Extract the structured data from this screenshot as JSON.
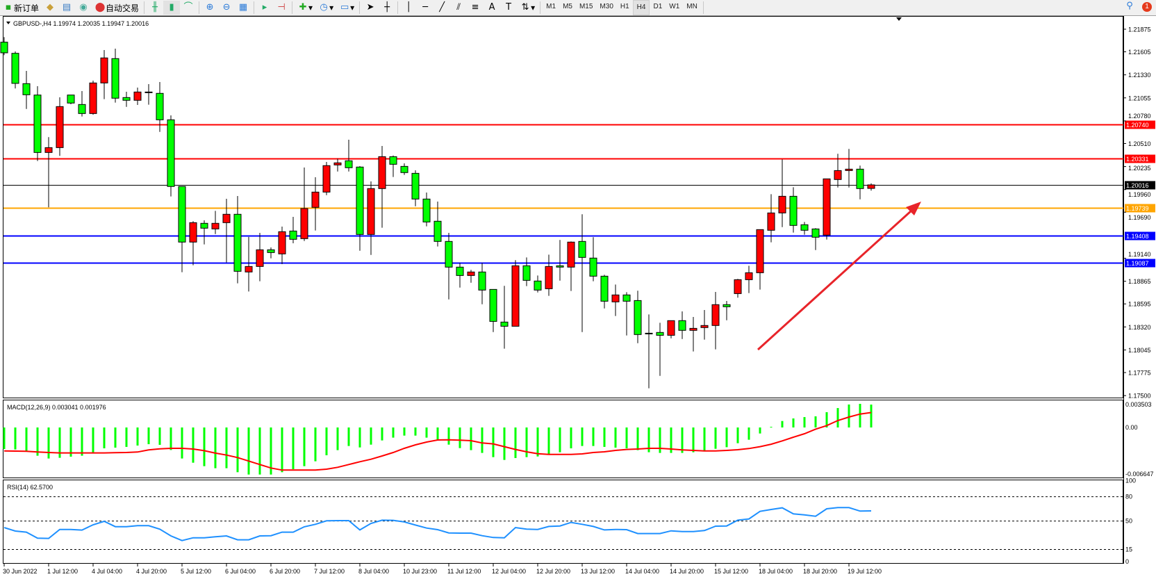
{
  "toolbar": {
    "new_order": "新订单",
    "auto_trading": "自动交易",
    "timeframes": [
      "M1",
      "M5",
      "M15",
      "M30",
      "H1",
      "H4",
      "D1",
      "W1",
      "MN"
    ],
    "active_timeframe": "H4",
    "notification_count": "1",
    "icons": [
      "new-order-icon",
      "history-icon",
      "market-watch-icon",
      "signals-icon",
      "auto-trading-icon",
      "bar-chart-icon",
      "candlestick-icon",
      "line-chart-icon",
      "zoom-in-icon",
      "zoom-out-icon",
      "tile-windows-icon",
      "autoscroll-icon",
      "chart-shift-icon",
      "indicators-icon",
      "periods-icon",
      "templates-icon",
      "cursor-icon",
      "crosshair-icon",
      "vertical-line-icon",
      "horizontal-line-icon",
      "trendline-icon",
      "equidistant-channel-icon",
      "fibonacci-icon",
      "text-icon",
      "text-label-icon",
      "arrows-icon",
      "search-icon",
      "notification-icon"
    ]
  },
  "chart": {
    "header": "GBPUSD-,H4  1.19974 1.20035 1.19947 1.20016",
    "colors": {
      "bull": "#ff0000",
      "bear": "#00ff00",
      "macd_hist": "#00ff00",
      "signal": "#ff0000",
      "rsi": "#1e90ff"
    }
  },
  "chart_data": [
    {
      "type": "candlestick",
      "symbol": "GBPUSD-",
      "timeframe": "H4",
      "ylim": [
        1.175,
        1.2195
      ],
      "y_ticks": [
        "1.21875",
        "1.21605",
        "1.21330",
        "1.21055",
        "1.20780",
        "1.20510",
        "1.20235",
        "1.19960",
        "1.19690",
        "1.19140",
        "1.18865",
        "1.18595",
        "1.18320",
        "1.18045",
        "1.17775",
        "1.17500"
      ],
      "x_ticks": [
        "30 Jun 2022",
        "1 Jul 12:00",
        "4 Jul 04:00",
        "4 Jul 20:00",
        "5 Jul 12:00",
        "6 Jul 04:00",
        "6 Jul 20:00",
        "7 Jul 12:00",
        "8 Jul 04:00",
        "10 Jul 23:00",
        "11 Jul 12:00",
        "12 Jul 04:00",
        "12 Jul 20:00",
        "13 Jul 12:00",
        "14 Jul 04:00",
        "14 Jul 20:00",
        "15 Jul 12:00",
        "18 Jul 04:00",
        "18 Jul 20:00",
        "19 Jul 12:00"
      ],
      "ohlc": [
        [
          1.2172,
          1.21781,
          1.21565,
          1.21593
        ],
        [
          1.21587,
          1.21609,
          1.21167,
          1.21228
        ],
        [
          1.21225,
          1.21377,
          1.20923,
          1.21092
        ],
        [
          1.21089,
          1.21194,
          1.20301,
          1.20403
        ],
        [
          1.20403,
          1.20586,
          1.19748,
          1.20461
        ],
        [
          1.20461,
          1.21062,
          1.20362,
          1.20951
        ],
        [
          1.21089,
          1.2109,
          1.20979,
          1.20993
        ],
        [
          1.20976,
          1.21136,
          1.20832,
          1.20868
        ],
        [
          1.20868,
          1.21261,
          1.20854,
          1.21233
        ],
        [
          1.21233,
          1.21626,
          1.2104,
          1.21532
        ],
        [
          1.21524,
          1.21643,
          1.20998,
          1.21051
        ],
        [
          1.21059,
          1.21128,
          1.20948,
          1.21026
        ],
        [
          1.21026,
          1.21178,
          1.2097,
          1.21125
        ],
        [
          1.21117,
          1.21219,
          1.20973,
          1.21125
        ],
        [
          1.21109,
          1.21244,
          1.20649,
          1.20793
        ],
        [
          1.20793,
          1.20846,
          1.19878,
          1.19997
        ],
        [
          1.19997,
          1.19998,
          1.18973,
          1.19333
        ],
        [
          1.19333,
          1.19582,
          1.19056,
          1.19565
        ],
        [
          1.19557,
          1.19593,
          1.19305,
          1.19499
        ],
        [
          1.1949,
          1.19706,
          1.19429,
          1.19557
        ],
        [
          1.19565,
          1.1985,
          1.19089,
          1.19665
        ],
        [
          1.19665,
          1.19883,
          1.1884,
          1.18984
        ],
        [
          1.18976,
          1.19394,
          1.18743,
          1.19042
        ],
        [
          1.19042,
          1.19443,
          1.18865,
          1.19241
        ],
        [
          1.19241,
          1.19269,
          1.19139,
          1.19208
        ],
        [
          1.19192,
          1.19518,
          1.1907,
          1.19457
        ],
        [
          1.19465,
          1.19634,
          1.19319,
          1.19366
        ],
        [
          1.19374,
          1.20223,
          1.19346,
          1.19734
        ],
        [
          1.19748,
          1.20107,
          1.19471,
          1.1993
        ],
        [
          1.1993,
          1.2029,
          1.19894,
          1.20246
        ],
        [
          1.20254,
          1.20329,
          1.20176,
          1.20279
        ],
        [
          1.20304,
          1.20555,
          1.20176,
          1.20221
        ],
        [
          1.20229,
          1.2024,
          1.1923,
          1.19424
        ],
        [
          1.19424,
          1.20057,
          1.1918,
          1.19972
        ],
        [
          1.19972,
          1.20481,
          1.19504,
          1.20353
        ],
        [
          1.20353,
          1.20367,
          1.2011,
          1.20262
        ],
        [
          1.20237,
          1.20273,
          1.20135,
          1.20163
        ],
        [
          1.20154,
          1.2019,
          1.19761,
          1.19847
        ],
        [
          1.19847,
          1.19925,
          1.19521,
          1.19573
        ],
        [
          1.19582,
          1.19817,
          1.1928,
          1.19341
        ],
        [
          1.19341,
          1.19443,
          1.18649,
          1.19034
        ],
        [
          1.19034,
          1.19084,
          1.1879,
          1.18934
        ],
        [
          1.18934,
          1.19001,
          1.18848,
          1.18976
        ],
        [
          1.18976,
          1.19084,
          1.18591,
          1.1876
        ],
        [
          1.18768,
          1.18769,
          1.18259,
          1.18386
        ],
        [
          1.18378,
          1.1881,
          1.1806,
          1.18328
        ],
        [
          1.18328,
          1.19117,
          1.18328,
          1.1905
        ],
        [
          1.1905,
          1.1915,
          1.18807,
          1.18876
        ],
        [
          1.18868,
          1.18934,
          1.18732,
          1.1876
        ],
        [
          1.18776,
          1.19183,
          1.18691,
          1.19042
        ],
        [
          1.1905,
          1.19358,
          1.18873,
          1.19034
        ],
        [
          1.19034,
          1.19341,
          1.18749,
          1.19333
        ],
        [
          1.19341,
          1.19665,
          1.18259,
          1.1915
        ],
        [
          1.19142,
          1.19391,
          1.18865,
          1.18926
        ],
        [
          1.18926,
          1.18942,
          1.18541,
          1.18627
        ],
        [
          1.18619,
          1.18826,
          1.1845,
          1.18702
        ],
        [
          1.18702,
          1.18735,
          1.18218,
          1.18627
        ],
        [
          1.18635,
          1.18752,
          1.18126,
          1.18229
        ],
        [
          1.18245,
          1.18469,
          1.17587,
          1.18237
        ],
        [
          1.18254,
          1.1837,
          1.17736,
          1.1822
        ],
        [
          1.1822,
          1.18395,
          1.18184,
          1.18395
        ],
        [
          1.18395,
          1.18505,
          1.18176,
          1.18279
        ],
        [
          1.18279,
          1.18439,
          1.18027,
          1.18303
        ],
        [
          1.18312,
          1.18522,
          1.18168,
          1.18337
        ],
        [
          1.18337,
          1.18738,
          1.18052,
          1.18586
        ],
        [
          1.18586,
          1.1863,
          1.184,
          1.18561
        ],
        [
          1.18718,
          1.18893,
          1.18669,
          1.18884
        ],
        [
          1.18884,
          1.1905,
          1.18724,
          1.18967
        ],
        [
          1.18967,
          1.19482,
          1.18766,
          1.19482
        ],
        [
          1.19474,
          1.19905,
          1.1933,
          1.19681
        ],
        [
          1.19681,
          1.2032,
          1.19512,
          1.1988
        ],
        [
          1.1988,
          1.19988,
          1.19446,
          1.19532
        ],
        [
          1.1954,
          1.19573,
          1.19421,
          1.19474
        ],
        [
          1.1949,
          1.19499,
          1.19238,
          1.19391
        ],
        [
          1.19416,
          1.20088,
          1.19363,
          1.20088
        ],
        [
          1.2008,
          1.20387,
          1.19985,
          1.20187
        ],
        [
          1.20187,
          1.20445,
          1.19985,
          1.20204
        ],
        [
          1.20204,
          1.20246,
          1.19844,
          1.19972
        ],
        [
          1.19974,
          1.20035,
          1.19947,
          1.20016
        ]
      ],
      "levels": [
        {
          "price": "1.20740",
          "color": "#ff0000"
        },
        {
          "price": "1.20331",
          "color": "#ff0000"
        },
        {
          "price": "1.20016",
          "color": "#000000"
        },
        {
          "price": "1.19739",
          "color": "#ffa500"
        },
        {
          "price": "1.19408",
          "color": "#0000ff"
        },
        {
          "price": "1.19087",
          "color": "#0000ff"
        }
      ],
      "annotation": "red up-trend arrow"
    },
    {
      "type": "bar+line",
      "title": "MACD(12,26,9) 0.003041 0.001976",
      "ylim": [
        -0.006647,
        0.003503
      ],
      "y_ticks": [
        "0.003503",
        "0.00",
        "-0.006647"
      ],
      "histogram": [
        -0.00286,
        -0.00292,
        -0.00317,
        -0.00375,
        -0.00412,
        -0.00403,
        -0.00388,
        -0.00375,
        -0.00342,
        -0.00277,
        -0.00268,
        -0.00258,
        -0.0024,
        -0.00222,
        -0.00231,
        -0.00299,
        -0.00412,
        -0.00468,
        -0.00514,
        -0.00541,
        -0.00541,
        -0.00594,
        -0.00625,
        -0.00625,
        -0.00625,
        -0.00594,
        -0.00554,
        -0.00514,
        -0.00449,
        -0.00369,
        -0.00301,
        -0.00246,
        -0.00265,
        -0.00228,
        -0.00172,
        -0.00135,
        -0.00108,
        -0.00108,
        -0.00135,
        -0.00169,
        -0.00228,
        -0.00274,
        -0.00301,
        -0.00338,
        -0.00394,
        -0.00431,
        -0.00406,
        -0.00394,
        -0.00385,
        -0.00351,
        -0.00329,
        -0.00277,
        -0.00246,
        -0.00246,
        -0.00258,
        -0.00268,
        -0.00277,
        -0.00301,
        -0.00329,
        -0.00338,
        -0.00338,
        -0.00338,
        -0.00329,
        -0.00314,
        -0.00283,
        -0.00262,
        -0.00209,
        -0.00163,
        -0.0008,
        9e-05,
        0.00086,
        0.0012,
        0.00138,
        0.00148,
        0.00203,
        0.00258,
        0.00305,
        0.00314,
        0.00304
      ],
      "signal": [
        -0.00311,
        -0.00314,
        -0.00317,
        -0.00326,
        -0.00332,
        -0.00338,
        -0.00338,
        -0.00338,
        -0.00338,
        -0.00338,
        -0.00335,
        -0.00332,
        -0.00326,
        -0.00298,
        -0.00283,
        -0.00277,
        -0.00277,
        -0.00286,
        -0.00308,
        -0.00341,
        -0.00366,
        -0.004,
        -0.00446,
        -0.00492,
        -0.00538,
        -0.00566,
        -0.00566,
        -0.00566,
        -0.00566,
        -0.00554,
        -0.00529,
        -0.00492,
        -0.00455,
        -0.00422,
        -0.00378,
        -0.00332,
        -0.00277,
        -0.00231,
        -0.00194,
        -0.00166,
        -0.00163,
        -0.00169,
        -0.00175,
        -0.00206,
        -0.00218,
        -0.00255,
        -0.00292,
        -0.00323,
        -0.00348,
        -0.00357,
        -0.00357,
        -0.00357,
        -0.00351,
        -0.00332,
        -0.00323,
        -0.00305,
        -0.00292,
        -0.00286,
        -0.00277,
        -0.00277,
        -0.00286,
        -0.00298,
        -0.00305,
        -0.00311,
        -0.00311,
        -0.00305,
        -0.00295,
        -0.0028,
        -0.00255,
        -0.00222,
        -0.00178,
        -0.00129,
        -0.00083,
        -0.00022,
        0.00025,
        0.00092,
        0.00138,
        0.00178,
        0.00198
      ]
    },
    {
      "type": "line",
      "title": "RSI(14) 62.5700",
      "ylim": [
        0,
        100
      ],
      "y_ticks": [
        "100",
        "80",
        "50",
        "15",
        "0"
      ],
      "levels": [
        80,
        50,
        15
      ],
      "values": [
        42.0,
        37.7,
        36.3,
        28.9,
        28.6,
        39.7,
        39.7,
        38.9,
        45.4,
        49.7,
        43.1,
        43.1,
        44.3,
        44.3,
        40.0,
        31.7,
        26.0,
        29.4,
        29.4,
        30.6,
        31.7,
        26.9,
        26.9,
        31.7,
        32.0,
        36.3,
        36.3,
        42.9,
        46.0,
        50.3,
        50.6,
        50.6,
        39.1,
        47.1,
        51.1,
        50.9,
        48.9,
        45.1,
        41.4,
        39.4,
        35.4,
        35.1,
        35.1,
        32.0,
        29.7,
        29.4,
        42.0,
        40.0,
        39.7,
        43.4,
        44.0,
        48.3,
        46.0,
        43.4,
        39.1,
        39.7,
        39.4,
        34.6,
        34.6,
        34.6,
        38.0,
        37.1,
        37.1,
        38.3,
        43.7,
        44.0,
        51.1,
        52.6,
        62.0,
        64.3,
        66.3,
        58.9,
        57.7,
        56.0,
        65.1,
        66.6,
        66.6,
        62.3,
        62.57
      ]
    }
  ]
}
